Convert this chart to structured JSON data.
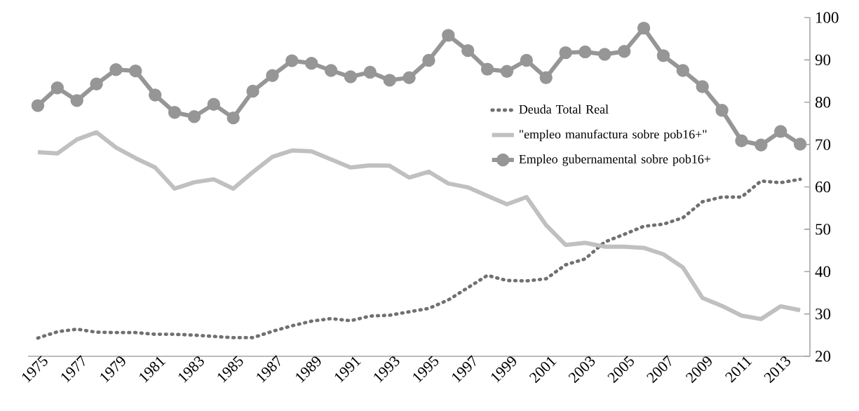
{
  "chart_data": {
    "type": "line",
    "categories": [
      "1975",
      null,
      "1977",
      null,
      "1979",
      null,
      "1981",
      null,
      "1983",
      null,
      "1985",
      null,
      "1987",
      null,
      "1989",
      null,
      "1991",
      null,
      "1993",
      null,
      "1995",
      null,
      "1997",
      null,
      "1999",
      null,
      "2001",
      null,
      "2003",
      null,
      "2005",
      null,
      "2007",
      null,
      "2009",
      null,
      "2011",
      null,
      "2013",
      null
    ],
    "series": [
      {
        "name": "Deuda Total Real",
        "color": "#707070",
        "line_style": "dotted",
        "marker": "none",
        "values": [
          24.3,
          25.8,
          26.4,
          25.7,
          25.6,
          25.6,
          25.2,
          25.2,
          25.0,
          24.7,
          24.4,
          24.4,
          25.9,
          27.2,
          28.3,
          28.9,
          28.4,
          29.5,
          29.7,
          30.5,
          31.3,
          33.3,
          36.2,
          39.1,
          37.9,
          37.8,
          38.3,
          41.6,
          43.0,
          47.0,
          48.8,
          50.7,
          51.2,
          52.7,
          56.5,
          57.6,
          57.6,
          61.4,
          61.0,
          61.8
        ]
      },
      {
        "name": "\"empleo manufactura sobre pob16+\"",
        "color": "#c0c0c0",
        "line_style": "solid",
        "marker": "none",
        "values": [
          68.2,
          67.9,
          71.2,
          72.9,
          69.3,
          66.8,
          64.6,
          59.6,
          61.1,
          61.8,
          59.6,
          63.5,
          67.1,
          68.6,
          68.4,
          66.5,
          64.6,
          65.1,
          65.0,
          62.2,
          63.6,
          60.8,
          59.9,
          57.9,
          55.9,
          57.6,
          51.0,
          46.3,
          46.8,
          45.9,
          45.9,
          45.6,
          44.1,
          41.0,
          33.8,
          31.9,
          29.6,
          28.8,
          31.8,
          30.9
        ]
      },
      {
        "name": "Empleo gubernamental sobre pob16+",
        "color": "#969696",
        "line_style": "solid",
        "marker": "circle",
        "values": [
          79.2,
          83.4,
          80.4,
          84.3,
          87.7,
          87.4,
          81.7,
          77.6,
          76.6,
          79.5,
          76.3,
          82.6,
          86.3,
          89.8,
          89.2,
          87.5,
          86.0,
          87.1,
          85.2,
          85.8,
          89.9,
          95.8,
          92.2,
          87.8,
          87.3,
          89.9,
          85.8,
          91.7,
          91.9,
          91.3,
          92.0,
          97.5,
          91.0,
          87.5,
          83.7,
          78.1,
          70.9,
          69.9,
          73.1,
          70.1
        ]
      }
    ],
    "ylim": [
      20,
      100
    ],
    "yticks": [
      20,
      30,
      40,
      50,
      60,
      70,
      80,
      90,
      100
    ],
    "legend": "right",
    "grid": false
  }
}
